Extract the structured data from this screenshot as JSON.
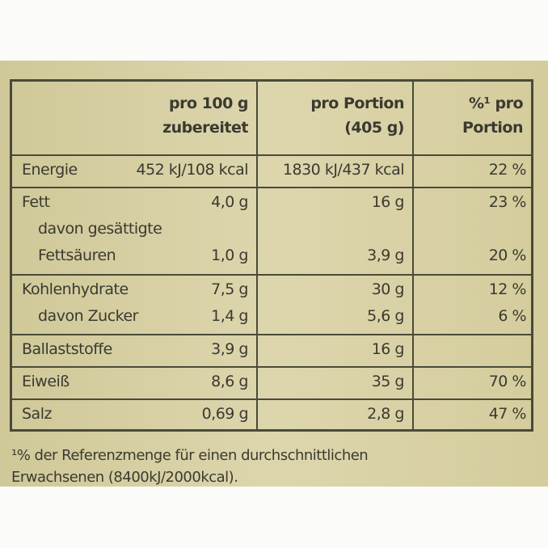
{
  "table": {
    "header": [
      [
        "pro 100 g",
        "zubereitet"
      ],
      [
        "pro Portion",
        "(405 g)"
      ],
      [
        "%¹ pro",
        "Portion"
      ]
    ],
    "groups": [
      [
        {
          "label": "Energie",
          "per100": "452 kJ/108 kcal",
          "portion": "1830 kJ/437 kcal",
          "percent": "22 %"
        }
      ],
      [
        {
          "label": "Fett",
          "per100": "4,0 g",
          "portion": "16 g",
          "percent": "23 %"
        },
        {
          "label": "davon gesättigte"
        },
        {
          "label": "Fettsäuren",
          "per100": "1,0 g",
          "portion": "3,9 g",
          "percent": "20 %"
        }
      ],
      [
        {
          "label": "Kohlenhydrate",
          "per100": "7,5 g",
          "portion": "30 g",
          "percent": "12 %"
        },
        {
          "label": "davon Zucker",
          "per100": "1,4 g",
          "portion": "5,6 g",
          "percent": "6 %"
        }
      ],
      [
        {
          "label": "Ballaststoffe",
          "per100": "3,9 g",
          "portion": "16 g"
        }
      ],
      [
        {
          "label": "Eiweiß",
          "per100": "8,6 g",
          "portion": "35 g",
          "percent": "70 %"
        }
      ],
      [
        {
          "label": "Salz",
          "per100": "0,69 g",
          "portion": "2,8 g",
          "percent": "47 %"
        }
      ]
    ]
  },
  "footnote": [
    "¹% der Referenzmenge für einen durchschnittlichen",
    "Erwachsenen (8400kJ/2000kcal)."
  ]
}
